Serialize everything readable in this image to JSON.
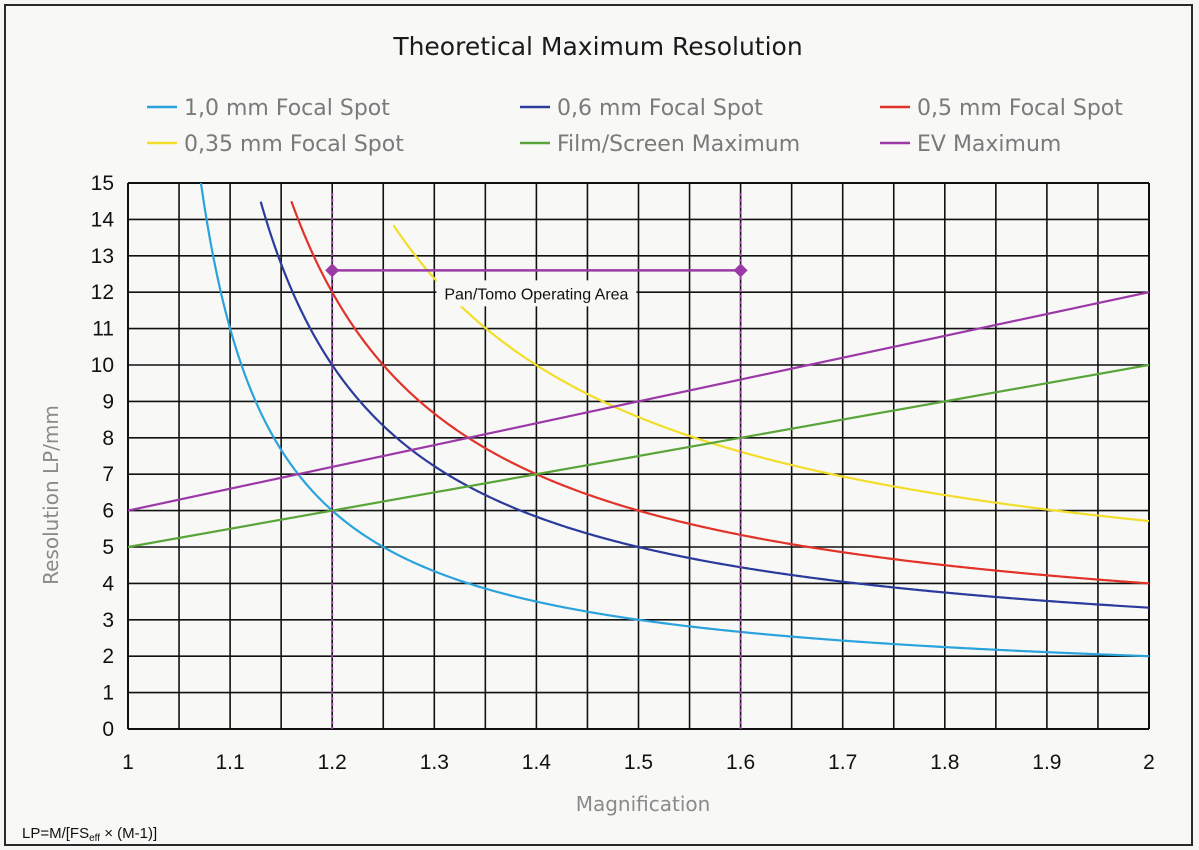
{
  "chart_data": {
    "type": "line",
    "title": "Theoretical Maximum Resolution",
    "xlabel": "Magnification",
    "ylabel": "Resolution LP/mm",
    "xlim": [
      1,
      2
    ],
    "ylim": [
      0,
      15
    ],
    "xticks": [
      "1",
      "1.1",
      "1.2",
      "1.3",
      "1.4",
      "1.5",
      "1.6",
      "1.7",
      "1.8",
      "1.9",
      "2"
    ],
    "yticks": [
      "0",
      "1",
      "2",
      "3",
      "4",
      "5",
      "6",
      "7",
      "8",
      "9",
      "10",
      "11",
      "12",
      "13",
      "14",
      "15"
    ],
    "grid": true,
    "legend_position": "top",
    "series": [
      {
        "name": "1,0 mm Focal Spot",
        "color": "#2aa3dc",
        "focal_spot_mm": 1.0,
        "x": [
          1.07,
          1.1,
          1.15,
          1.2,
          1.3,
          1.4,
          1.5,
          1.6,
          1.7,
          1.8,
          1.9,
          2.0
        ],
        "y": [
          15.3,
          11.0,
          7.67,
          6.0,
          4.33,
          3.5,
          3.0,
          2.67,
          2.43,
          2.25,
          2.11,
          2.0
        ]
      },
      {
        "name": "0,6 mm Focal Spot",
        "color": "#2a3b9c",
        "focal_spot_mm": 0.6,
        "x": [
          1.13,
          1.2,
          1.3,
          1.4,
          1.5,
          1.6,
          1.7,
          1.8,
          1.9,
          2.0
        ],
        "y": [
          14.5,
          10.0,
          7.22,
          5.83,
          5.0,
          4.44,
          4.05,
          3.75,
          3.52,
          3.33
        ]
      },
      {
        "name": "0,5 mm Focal Spot",
        "color": "#e2332a",
        "focal_spot_mm": 0.5,
        "x": [
          1.16,
          1.2,
          1.3,
          1.4,
          1.5,
          1.6,
          1.7,
          1.8,
          1.9,
          2.0
        ],
        "y": [
          14.5,
          12.0,
          8.67,
          7.0,
          6.0,
          5.33,
          4.86,
          4.5,
          4.22,
          4.0
        ]
      },
      {
        "name": "0,35 mm Focal Spot",
        "color": "#f2de2a",
        "focal_spot_mm": 0.35,
        "x": [
          1.26,
          1.3,
          1.4,
          1.5,
          1.6,
          1.7,
          1.8,
          1.9,
          2.0
        ],
        "y": [
          13.8,
          12.4,
          10.0,
          8.57,
          7.62,
          6.94,
          6.43,
          6.03,
          5.71
        ]
      },
      {
        "name": "Film/Screen Maximum",
        "color": "#5aa53a",
        "x": [
          1.0,
          2.0
        ],
        "y": [
          5.0,
          10.0
        ]
      },
      {
        "name": "EV Maximum",
        "color": "#9b3aa6",
        "x": [
          1.0,
          2.0
        ],
        "y": [
          6.0,
          12.0
        ]
      }
    ],
    "annotations": [
      {
        "text": "Pan/Tomo Operating Area",
        "x_range": [
          1.2,
          1.6
        ],
        "y": 12.6,
        "color": "#9b3aa6"
      }
    ],
    "formula": "LP=M/[FS",
    "formula_sub": "eff",
    "formula_end": " × (M-1)]"
  }
}
